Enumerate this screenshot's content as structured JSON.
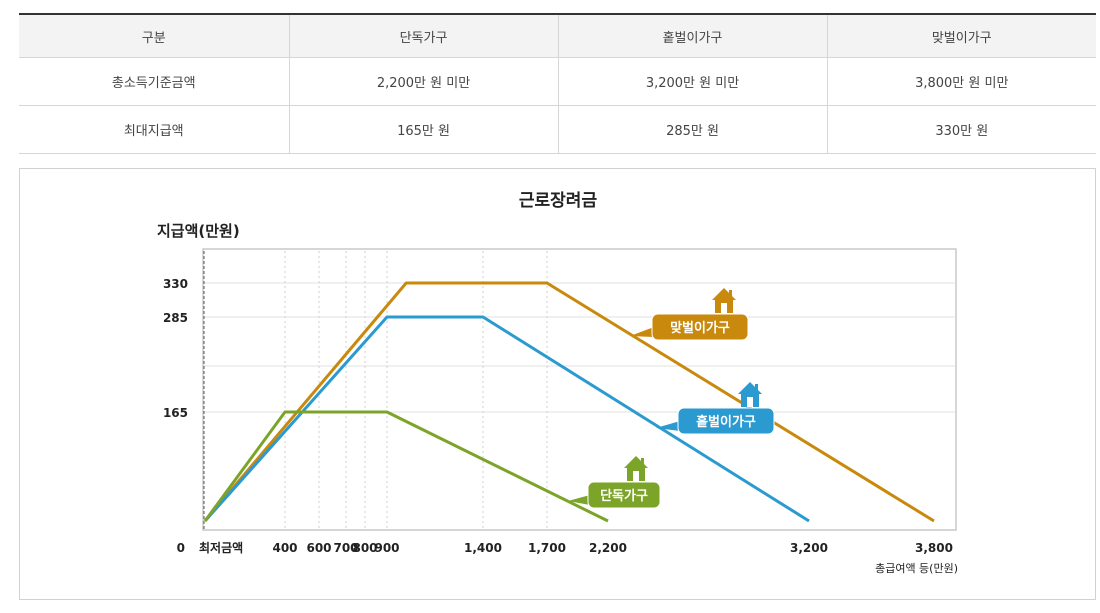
{
  "table": {
    "headers": [
      "구분",
      "단독가구",
      "홑벌이가구",
      "맞벌이가구"
    ],
    "rows": [
      [
        "총소득기준금액",
        "2,200만 원 미만",
        "3,200만 원 미만",
        "3,800만 원 미만"
      ],
      [
        "최대지급액",
        "165만 원",
        "285만 원",
        "330만 원"
      ]
    ]
  },
  "chart_data": {
    "type": "line",
    "title": "근로장려금",
    "ylabel": "지급액(만원)",
    "xlabel": "총급여액 등(만원)",
    "min_wage_label": "최저금액",
    "ylim": [
      0,
      375
    ],
    "xlim": [
      0,
      4000
    ],
    "y_ticks": [
      "0",
      "165",
      "285",
      "330"
    ],
    "y_tick_values": [
      0,
      165,
      285,
      330
    ],
    "x_ticks": [
      "400",
      "600",
      "700",
      "800",
      "900",
      "1,400",
      "1,700",
      "2,200",
      "3,200",
      "3,800"
    ],
    "x_tick_values": [
      400,
      600,
      700,
      800,
      900,
      1400,
      1700,
      2200,
      3200,
      3800
    ],
    "grid": true,
    "colors": {
      "single": "#7ba428",
      "onewage": "#2b9ad0",
      "dual": "#c8890d"
    },
    "series": [
      {
        "name": "맞벌이가구",
        "key": "dual",
        "x": [
          0,
          1000,
          1700,
          3800
        ],
        "y": [
          0,
          330,
          330,
          0
        ]
      },
      {
        "name": "홑벌이가구",
        "key": "onewage",
        "x": [
          0,
          900,
          1400,
          3200
        ],
        "y": [
          0,
          285,
          285,
          0
        ]
      },
      {
        "name": "단독가구",
        "key": "single",
        "x": [
          0,
          400,
          900,
          2200
        ],
        "y": [
          0,
          165,
          165,
          0
        ]
      }
    ]
  }
}
